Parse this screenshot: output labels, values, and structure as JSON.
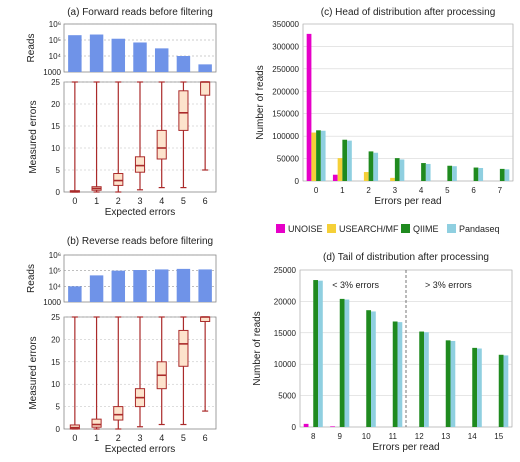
{
  "chart_data": [
    {
      "id": "a",
      "type": "bar",
      "title": "(a) Forward reads before filtering",
      "ylabel": "Reads",
      "yscale": "log",
      "ylim": [
        1000,
        1000000
      ],
      "yticks": [
        "10^6",
        "10^5",
        "10^4",
        "1000"
      ],
      "categories": [
        "0",
        "1",
        "2",
        "3",
        "4",
        "5",
        "6"
      ],
      "values": [
        200000,
        220000,
        120000,
        70000,
        30000,
        10000,
        3000
      ],
      "color": "#6f93e8"
    },
    {
      "id": "a-box",
      "type": "box",
      "xlabel": "Expected errors",
      "ylabel": "Measured errors",
      "ylim": [
        0,
        25
      ],
      "yticks": [
        "0",
        "5",
        "10",
        "15",
        "20",
        "25"
      ],
      "categories": [
        "0",
        "1",
        "2",
        "3",
        "4",
        "5",
        "6"
      ],
      "boxes": [
        {
          "min": 0,
          "q1": 0,
          "median": 0.1,
          "q3": 0.3,
          "max": 25
        },
        {
          "min": 0,
          "q1": 0.4,
          "median": 0.8,
          "q3": 1.2,
          "max": 25
        },
        {
          "min": 0,
          "q1": 1.5,
          "median": 2.6,
          "q3": 4.2,
          "max": 25
        },
        {
          "min": 0.5,
          "q1": 4.5,
          "median": 6.0,
          "q3": 8.0,
          "max": 25
        },
        {
          "min": 1,
          "q1": 7.5,
          "median": 10.0,
          "q3": 14.0,
          "max": 25
        },
        {
          "min": 1,
          "q1": 14.0,
          "median": 18.0,
          "q3": 23.0,
          "max": 25
        },
        {
          "min": 5,
          "q1": 22.0,
          "median": 25,
          "q3": 25,
          "max": 25
        }
      ],
      "color": "#aa2a2a",
      "fill": "#fde3cc"
    },
    {
      "id": "b",
      "type": "bar",
      "title": "(b) Reverse reads before filtering",
      "ylabel": "Reads",
      "yscale": "log",
      "ylim": [
        1000,
        1000000
      ],
      "yticks": [
        "10^6",
        "10^5",
        "10^4",
        "1000"
      ],
      "categories": [
        "0",
        "1",
        "2",
        "3",
        "4",
        "5",
        "6"
      ],
      "values": [
        10000,
        50000,
        100000,
        110000,
        120000,
        130000,
        120000
      ],
      "color": "#6f93e8"
    },
    {
      "id": "b-box",
      "type": "box",
      "xlabel": "Expected errors",
      "ylabel": "Measured errors",
      "ylim": [
        0,
        25
      ],
      "yticks": [
        "0",
        "5",
        "10",
        "15",
        "20",
        "25"
      ],
      "categories": [
        "0",
        "1",
        "2",
        "3",
        "4",
        "5",
        "6"
      ],
      "boxes": [
        {
          "min": 0,
          "q1": 0,
          "median": 0.3,
          "q3": 0.9,
          "max": 25
        },
        {
          "min": 0,
          "q1": 0.4,
          "median": 1.0,
          "q3": 2.2,
          "max": 25
        },
        {
          "min": 0,
          "q1": 2.0,
          "median": 3.2,
          "q3": 5.0,
          "max": 25
        },
        {
          "min": 0.5,
          "q1": 5.0,
          "median": 7.0,
          "q3": 9.0,
          "max": 25
        },
        {
          "min": 1,
          "q1": 9.0,
          "median": 12.0,
          "q3": 15.0,
          "max": 25
        },
        {
          "min": 1,
          "q1": 14.0,
          "median": 19.0,
          "q3": 22.0,
          "max": 25
        },
        {
          "min": 4,
          "q1": 24.0,
          "median": 25,
          "q3": 25,
          "max": 25
        }
      ],
      "color": "#aa2a2a",
      "fill": "#fde3cc"
    },
    {
      "id": "c",
      "type": "bar",
      "title": "(c) Head of distribution after processing",
      "xlabel": "Errors per read",
      "ylabel": "Number of reads",
      "ylim": [
        0,
        350000
      ],
      "yticks": [
        "0",
        "50000",
        "100000",
        "150000",
        "200000",
        "250000",
        "300000",
        "350000"
      ],
      "categories": [
        "0",
        "1",
        "2",
        "3",
        "4",
        "5",
        "6",
        "7"
      ],
      "series": [
        {
          "name": "UNOISE",
          "color": "#e600c8",
          "values": [
            328000,
            14000,
            0,
            0,
            0,
            0,
            0,
            0
          ]
        },
        {
          "name": "USEARCH/MF",
          "color": "#f5d038",
          "values": [
            108000,
            51000,
            20000,
            7000,
            0,
            0,
            0,
            0
          ]
        },
        {
          "name": "QIIME",
          "color": "#1f8a1f",
          "values": [
            113000,
            92000,
            66000,
            51000,
            40000,
            34000,
            30000,
            27000
          ]
        },
        {
          "name": "Pandaseq",
          "color": "#8fcfe0",
          "values": [
            112000,
            90000,
            63000,
            48000,
            38000,
            33000,
            29000,
            26000
          ]
        }
      ]
    },
    {
      "id": "d",
      "type": "bar",
      "title": "(d) Tail of distribution after processing",
      "xlabel": "Errors per read",
      "ylabel": "Number of reads",
      "ylim": [
        0,
        25000
      ],
      "yticks": [
        "0",
        "5000",
        "10000",
        "15000",
        "20000",
        "25000"
      ],
      "categories": [
        "8",
        "9",
        "10",
        "11",
        "12",
        "13",
        "14",
        "15"
      ],
      "annotations": [
        "< 3% errors",
        "> 3% errors"
      ],
      "series": [
        {
          "name": "UNOISE",
          "color": "#e600c8",
          "values": [
            500,
            100,
            0,
            0,
            0,
            0,
            0,
            0
          ]
        },
        {
          "name": "USEARCH/MF",
          "color": "#f5d038",
          "values": [
            0,
            0,
            0,
            0,
            0,
            0,
            0,
            0
          ]
        },
        {
          "name": "QIIME",
          "color": "#1f8a1f",
          "values": [
            23400,
            20400,
            18600,
            16800,
            15200,
            13800,
            12600,
            11500
          ]
        },
        {
          "name": "Pandaseq",
          "color": "#8fcfe0",
          "values": [
            23300,
            20300,
            18400,
            16700,
            15100,
            13700,
            12500,
            11400
          ]
        }
      ]
    }
  ],
  "legend": [
    {
      "label": "UNOISE",
      "color": "#e600c8"
    },
    {
      "label": "USEARCH/MF",
      "color": "#f5d038"
    },
    {
      "label": "QIIME",
      "color": "#1f8a1f"
    },
    {
      "label": "Pandaseq",
      "color": "#8fcfe0"
    }
  ]
}
